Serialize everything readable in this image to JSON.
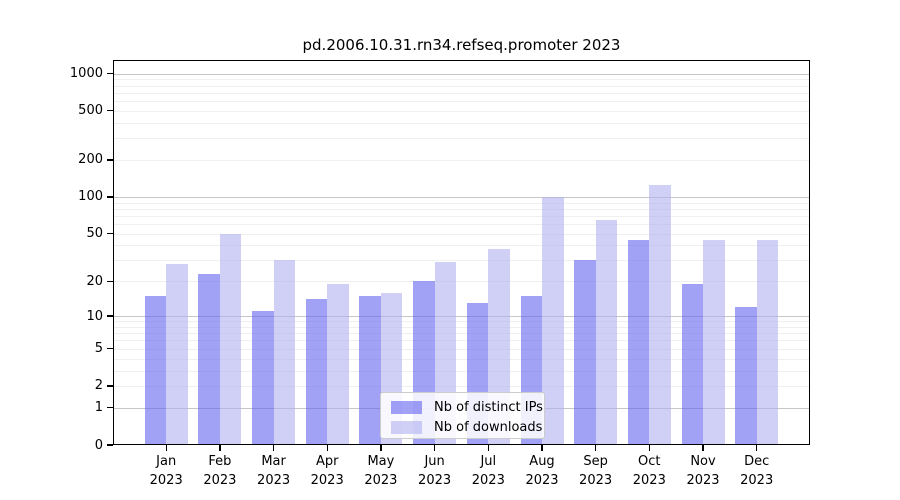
{
  "title": "pd.2006.10.31.rn34.refseq.promoter 2023",
  "chart_data": {
    "type": "bar",
    "title": "pd.2006.10.31.rn34.refseq.promoter 2023",
    "categories": [
      "Jan 2023",
      "Feb 2023",
      "Mar 2023",
      "Apr 2023",
      "May 2023",
      "Jun 2023",
      "Jul 2023",
      "Aug 2023",
      "Sep 2023",
      "Oct 2023",
      "Nov 2023",
      "Dec 2023"
    ],
    "series": [
      {
        "name": "Nb of distinct IPs",
        "color": "rgba(98,98,240,0.6)",
        "values": [
          15,
          23,
          11,
          14,
          15,
          20,
          13,
          15,
          30,
          44,
          19,
          12
        ]
      },
      {
        "name": "Nb of downloads",
        "color": "rgba(176,176,240,0.6)",
        "values": [
          28,
          50,
          30,
          19,
          16,
          29,
          37,
          100,
          65,
          125,
          44,
          44
        ]
      }
    ],
    "yscale": "log1p",
    "yticks": [
      0,
      1,
      2,
      5,
      10,
      20,
      50,
      100,
      200,
      500,
      1000
    ],
    "major_gridlines": [
      1,
      10,
      100,
      1000
    ],
    "minor_gridline_decades": [
      1,
      10,
      100
    ],
    "ylim": [
      0,
      1288
    ],
    "xlabel": "",
    "ylabel": "",
    "grid": true,
    "legend_position": "lower-center"
  }
}
